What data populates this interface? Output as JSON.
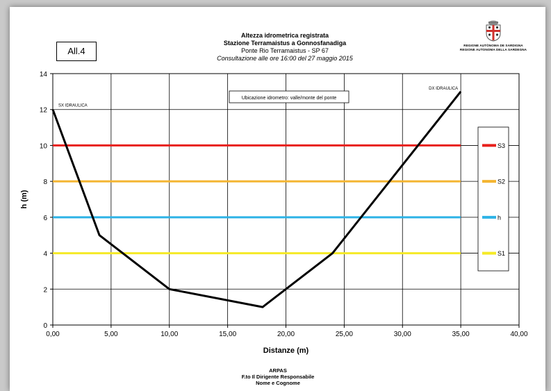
{
  "badge": "All.4",
  "header": {
    "line1": "Altezza idrometrica registrata",
    "line2": "Stazione Terramaistus a Gonnosfanadiga",
    "line3": "Ponte Rio Terramaistus - SP 67",
    "line4": "Consultazione alle ore 16:00 del 27 maggio 2015"
  },
  "emblem": {
    "line1": "REGIONE AUTÒNOMA DE SARDIGNA",
    "line2": "REGIONE AUTONOMA DELLA SARDEGNA"
  },
  "footer": {
    "line1": "ARPAS",
    "line2": "F.to Il Dirigente Responsabile",
    "line3": "Nome e Cognome"
  },
  "chart_data": {
    "type": "line",
    "xlabel": "Distanze (m)",
    "ylabel": "h (m)",
    "xlim": [
      0,
      40
    ],
    "ylim": [
      0,
      14
    ],
    "x_ticks": [
      "0,00",
      "5,00",
      "10,00",
      "15,00",
      "20,00",
      "25,00",
      "30,00",
      "35,00",
      "40,00"
    ],
    "y_ticks": [
      "0",
      "2",
      "4",
      "6",
      "8",
      "10",
      "12",
      "14"
    ],
    "grid": true,
    "legend_position": "right",
    "series": [
      {
        "name": "S3",
        "color": "#e8201c",
        "x": [
          0,
          35
        ],
        "y": [
          10,
          10
        ]
      },
      {
        "name": "S2",
        "color": "#f4b531",
        "x": [
          0,
          35
        ],
        "y": [
          8,
          8
        ]
      },
      {
        "name": "h",
        "color": "#2db3e6",
        "x": [
          0,
          35
        ],
        "y": [
          6,
          6
        ]
      },
      {
        "name": "S1",
        "color": "#f5ea26",
        "x": [
          0,
          35
        ],
        "y": [
          4,
          4
        ]
      }
    ],
    "profile": {
      "color": "#000000",
      "x": [
        0,
        4,
        10,
        18,
        24,
        35
      ],
      "y": [
        12,
        5,
        2,
        1,
        4,
        13
      ]
    },
    "annotations": {
      "left_bank": "SX IDRAULICA",
      "right_bank": "DX IDRAULICA",
      "note": "Ubicazione idrometro: valle/monte del ponte"
    }
  }
}
